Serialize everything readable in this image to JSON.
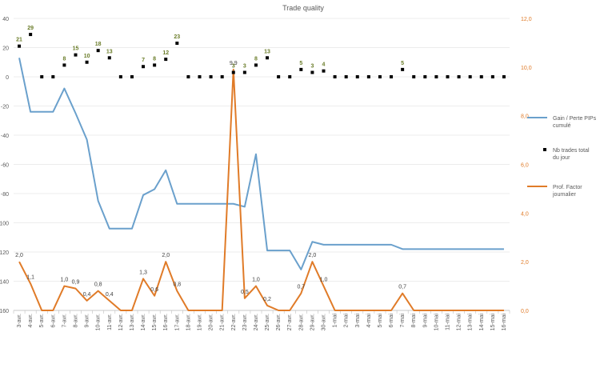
{
  "chart_data": {
    "type": "line",
    "title": "Trade quality",
    "categories": [
      "3-avr.",
      "4-avr.",
      "5-avr.",
      "6-avr.",
      "7-avr.",
      "8-avr.",
      "9-avr.",
      "10-avr.",
      "11-avr.",
      "12-avr.",
      "13-avr.",
      "14-avr.",
      "15-avr.",
      "16-avr.",
      "17-avr.",
      "18-avr.",
      "19-avr.",
      "20-avr.",
      "21-avr.",
      "22-avr.",
      "23-avr.",
      "24-avr.",
      "25-avr.",
      "26-avr.",
      "27-avr.",
      "28-avr.",
      "29-avr.",
      "30-avr.",
      "1-mai",
      "2-mai",
      "3-mai",
      "4-mai",
      "5-mai",
      "6-mai",
      "7-mai",
      "8-mai",
      "9-mai",
      "10-mai",
      "11-mai",
      "12-mai",
      "13-mai",
      "14-mai",
      "15-mai",
      "16-mai"
    ],
    "y_left": {
      "min": -160,
      "max": 40,
      "ticks": [
        40,
        20,
        0,
        -20,
        -40,
        -60,
        -80,
        -100,
        -120,
        -140,
        -160
      ]
    },
    "y_right": {
      "min": 0,
      "max": 12,
      "ticks": [
        "12,0",
        "10,0",
        "8,0",
        "6,0",
        "4,0",
        "2,0",
        "0,0"
      ]
    },
    "grid": true,
    "legend_position": "right",
    "series": [
      {
        "name": "Gain / Perte PIPs cumulé",
        "axis": "left",
        "style": "line",
        "color": "#6aa0cc",
        "values": [
          13,
          -24,
          -24,
          -24,
          -8,
          -25,
          -43,
          -85,
          -104,
          -104,
          -104,
          -81,
          -77,
          -64,
          -87,
          -87,
          -87,
          -87,
          -87,
          -87,
          -89,
          -53,
          -119,
          -119,
          -119,
          -132,
          -113,
          -115,
          -115,
          -115,
          -115,
          -115,
          -115,
          -115,
          -118,
          -118,
          -118,
          -118,
          -118,
          -118,
          -118,
          -118,
          -118,
          -118
        ]
      },
      {
        "name": "Nb trades total du jour",
        "axis": "left",
        "style": "markers",
        "color": "#000000",
        "label_color": "#6b7d2a",
        "values": [
          21,
          29,
          0,
          0,
          8,
          15,
          10,
          18,
          13,
          0,
          0,
          7,
          8,
          12,
          23,
          0,
          0,
          0,
          0,
          3,
          3,
          8,
          13,
          0,
          0,
          5,
          3,
          4,
          0,
          0,
          0,
          0,
          0,
          0,
          5,
          0,
          0,
          0,
          0,
          0,
          0,
          0,
          0,
          0
        ],
        "labels": [
          "21",
          "29",
          "",
          "",
          "8",
          "15",
          "10",
          "18",
          "13",
          "",
          "",
          "7",
          "8",
          "12",
          "23",
          "",
          "",
          "",
          "",
          "3",
          "3",
          "8",
          "13",
          "",
          "",
          "5",
          "3",
          "4",
          "",
          "",
          "",
          "",
          "",
          "",
          "5",
          "",
          "",
          "",
          "",
          "",
          "",
          "",
          "",
          ""
        ]
      },
      {
        "name": "Prof. Factor journalier",
        "axis": "right",
        "style": "line",
        "color": "#e07b28",
        "values": [
          2.0,
          1.1,
          0,
          0,
          1.0,
          0.9,
          0.4,
          0.8,
          0.4,
          0,
          0,
          1.3,
          0.6,
          2.0,
          0.8,
          0,
          0,
          0,
          0,
          9.9,
          0.5,
          1.0,
          0.2,
          0,
          0,
          0.7,
          2.0,
          1.0,
          0,
          0,
          0,
          0,
          0,
          0,
          0.7,
          0,
          0,
          0,
          0,
          0,
          0,
          0,
          0,
          0
        ],
        "labels": [
          "2,0",
          "1,1",
          "",
          "",
          "1,0",
          "0,9",
          "0,4",
          "0,8",
          "0,4",
          "",
          "",
          "1,3",
          "0,6",
          "2,0",
          "0,8",
          "",
          "",
          "",
          "",
          "9,9",
          "0,5",
          "1,0",
          "0,2",
          "",
          "",
          "0,7",
          "2,0",
          "1,0",
          "",
          "",
          "",
          "",
          "",
          "",
          "0,7",
          "",
          "",
          "",
          "",
          "",
          "",
          "",
          "",
          ""
        ]
      }
    ]
  }
}
